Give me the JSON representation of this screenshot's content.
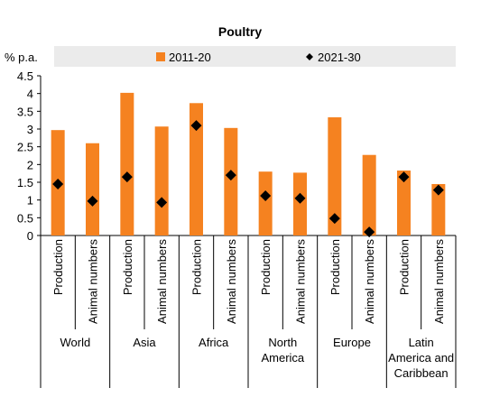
{
  "chart_data": {
    "type": "bar",
    "title": "Poultry",
    "ylabel": "% p.a.",
    "ylim": [
      0,
      4.5
    ],
    "yticks": [
      "0",
      "0.5",
      "1",
      "1.5",
      "2",
      "2.5",
      "3",
      "3.5",
      "4",
      "4.5"
    ],
    "grid": false,
    "legend_position": "top",
    "groups": [
      {
        "label": "World",
        "categories": [
          "Production",
          "Animal numbers"
        ]
      },
      {
        "label": "Asia",
        "categories": [
          "Production",
          "Animal numbers"
        ]
      },
      {
        "label": "Africa",
        "categories": [
          "Production",
          "Animal numbers"
        ]
      },
      {
        "label": "North America",
        "label_lines": [
          "North",
          "America"
        ],
        "categories": [
          "Production",
          "Animal numbers"
        ]
      },
      {
        "label": "Europe",
        "categories": [
          "Production",
          "Animal numbers"
        ]
      },
      {
        "label": "Latin America and Caribbean",
        "label_lines": [
          "Latin",
          "America and",
          "Caribbean"
        ],
        "categories": [
          "Production",
          "Animal numbers"
        ]
      }
    ],
    "series": [
      {
        "name": "2011-20",
        "type": "bar",
        "color": "#f58220",
        "values": [
          2.97,
          2.6,
          4.02,
          3.07,
          3.73,
          3.03,
          1.8,
          1.77,
          3.33,
          2.27,
          1.83,
          1.45
        ]
      },
      {
        "name": "2021-30",
        "type": "marker",
        "marker": "diamond",
        "color": "#000000",
        "values": [
          1.45,
          0.97,
          1.65,
          0.93,
          3.1,
          1.7,
          1.12,
          1.05,
          0.48,
          0.1,
          1.65,
          1.28
        ]
      }
    ]
  }
}
